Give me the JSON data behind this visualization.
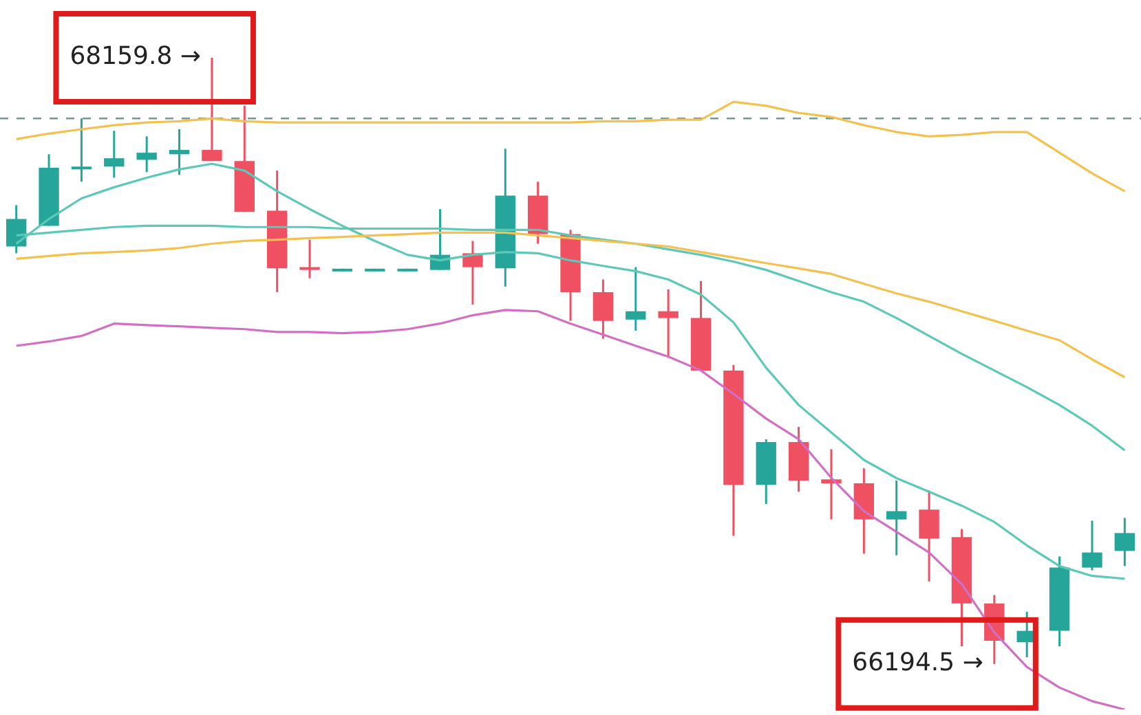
{
  "chart_data": {
    "type": "candlestick",
    "categories": [
      null,
      null,
      null,
      null,
      null,
      null,
      null,
      null,
      null,
      null,
      null,
      null,
      null,
      null,
      null,
      null,
      null,
      null,
      null,
      null,
      null,
      null,
      null,
      null,
      null,
      null,
      null,
      null,
      null,
      null,
      null,
      null,
      null,
      null,
      null
    ],
    "ohlc": [
      [
        67548,
        67682,
        67526,
        67637
      ],
      [
        67615,
        67847,
        67615,
        67803
      ],
      [
        67798,
        67963,
        67758,
        67807
      ],
      [
        67807,
        67923,
        67771,
        67834
      ],
      [
        67829,
        67905,
        67789,
        67852
      ],
      [
        67847,
        67928,
        67780,
        67861
      ],
      [
        67861,
        68159.8,
        67825,
        67825
      ],
      [
        67825,
        68004,
        67660,
        67660
      ],
      [
        67664,
        67794,
        67400,
        67477
      ],
      [
        67481,
        67570,
        67445,
        67472
      ],
      [
        67468,
        67476,
        67468,
        67476
      ],
      [
        67468,
        67476,
        67468,
        67476
      ],
      [
        67468,
        67476,
        67468,
        67476
      ],
      [
        67472,
        67669,
        67472,
        67521
      ],
      [
        67526,
        67566,
        67360,
        67481
      ],
      [
        67477,
        67865,
        67418,
        67713
      ],
      [
        67713,
        67758,
        67557,
        67588
      ],
      [
        67588,
        67602,
        67307,
        67400
      ],
      [
        67400,
        67441,
        67249,
        67307
      ],
      [
        67311,
        67481,
        67275,
        67338
      ],
      [
        67338,
        67409,
        67191,
        67316
      ],
      [
        67316,
        67436,
        67146,
        67146
      ],
      [
        67146,
        67164,
        66610,
        66775
      ],
      [
        66775,
        66923,
        66713,
        66914
      ],
      [
        66914,
        66963,
        66753,
        66789
      ],
      [
        66793,
        66891,
        66663,
        66780
      ],
      [
        66780,
        66829,
        66552,
        66663
      ],
      [
        66663,
        66789,
        66547,
        66690
      ],
      [
        66695,
        66757,
        66462,
        66601
      ],
      [
        66606,
        66632,
        66252,
        66391
      ],
      [
        66391,
        66418,
        66194.5,
        66270
      ],
      [
        66265,
        66364,
        66216,
        66302
      ],
      [
        66302,
        66543,
        66252,
        66507
      ],
      [
        66507,
        66659,
        66498,
        66556
      ],
      [
        66561,
        66668,
        66512,
        66619
      ]
    ],
    "colors": [
      "#26a69a",
      "#26a69a",
      "#26a69a",
      "#26a69a",
      "#26a69a",
      "#26a69a",
      "#ef5062",
      "#ef5062",
      "#ef5062",
      "#ef5062",
      "#26a69a",
      "#26a69a",
      "#26a69a",
      "#26a69a",
      "#ef5062",
      "#26a69a",
      "#ef5062",
      "#ef5062",
      "#ef5062",
      "#26a69a",
      "#ef5062",
      "#ef5062",
      "#ef5062",
      "#26a69a",
      "#ef5062",
      "#ef5062",
      "#ef5062",
      "#26a69a",
      "#ef5062",
      "#ef5062",
      "#ef5062",
      "#26a69a",
      "#26a69a",
      "#26a69a",
      "#26a69a"
    ],
    "series": [
      {
        "type": "line",
        "color": "#f2c14e",
        "values": [
          67896,
          67914,
          67928,
          67941,
          67950,
          67954,
          67963,
          67954,
          67950,
          67950,
          67950,
          67950,
          67950,
          67950,
          67950,
          67950,
          67950,
          67950,
          67954,
          67954,
          67959,
          67959,
          68017,
          68004,
          67981,
          67968,
          67941,
          67919,
          67905,
          67910,
          67919,
          67919,
          67852,
          67785,
          67727
        ]
      },
      {
        "type": "line",
        "color": "#f2c14e",
        "values": [
          67508,
          67517,
          67526,
          67530,
          67535,
          67543,
          67557,
          67566,
          67570,
          67575,
          67579,
          67584,
          67588,
          67593,
          67593,
          67593,
          67584,
          67575,
          67566,
          67557,
          67548,
          67530,
          67512,
          67494,
          67477,
          67459,
          67427,
          67396,
          67369,
          67338,
          67307,
          67275,
          67244,
          67182,
          67124
        ]
      },
      {
        "type": "line",
        "color": "#5cc9b8",
        "values": [
          67557,
          67637,
          67704,
          67740,
          67771,
          67798,
          67816,
          67794,
          67727,
          67669,
          67615,
          67566,
          67521,
          67503,
          67521,
          67530,
          67526,
          67503,
          67485,
          67468,
          67441,
          67392,
          67302,
          67155,
          67034,
          66945,
          66856,
          66797,
          66753,
          66708,
          66655,
          66579,
          66512,
          66480,
          66471
        ]
      },
      {
        "type": "line",
        "color": "#5cc9b8",
        "values": [
          67584,
          67593,
          67602,
          67611,
          67615,
          67615,
          67615,
          67611,
          67611,
          67611,
          67606,
          67606,
          67606,
          67606,
          67602,
          67602,
          67602,
          67584,
          67570,
          67557,
          67539,
          67521,
          67499,
          67472,
          67436,
          67400,
          67369,
          67316,
          67258,
          67200,
          67146,
          67092,
          67034,
          66967,
          66887
        ]
      },
      {
        "type": "line",
        "color": "#d26fc4",
        "values": [
          67226,
          67240,
          67258,
          67298,
          67293,
          67289,
          67284,
          67280,
          67271,
          67271,
          67267,
          67271,
          67280,
          67298,
          67325,
          67342,
          67338,
          67298,
          67262,
          67226,
          67191,
          67146,
          67070,
          66990,
          66923,
          66798,
          66690,
          66623,
          66556,
          66454,
          66297,
          66185,
          66118,
          66074,
          66047
        ]
      }
    ],
    "ref_lines": [
      {
        "axis": "y",
        "value": 67963,
        "color": "#6f9a9a",
        "line_style": "dashed"
      }
    ],
    "annotations": [
      "68159.8 →",
      "66194.5 →"
    ],
    "tick_labels": false,
    "legend": false
  }
}
